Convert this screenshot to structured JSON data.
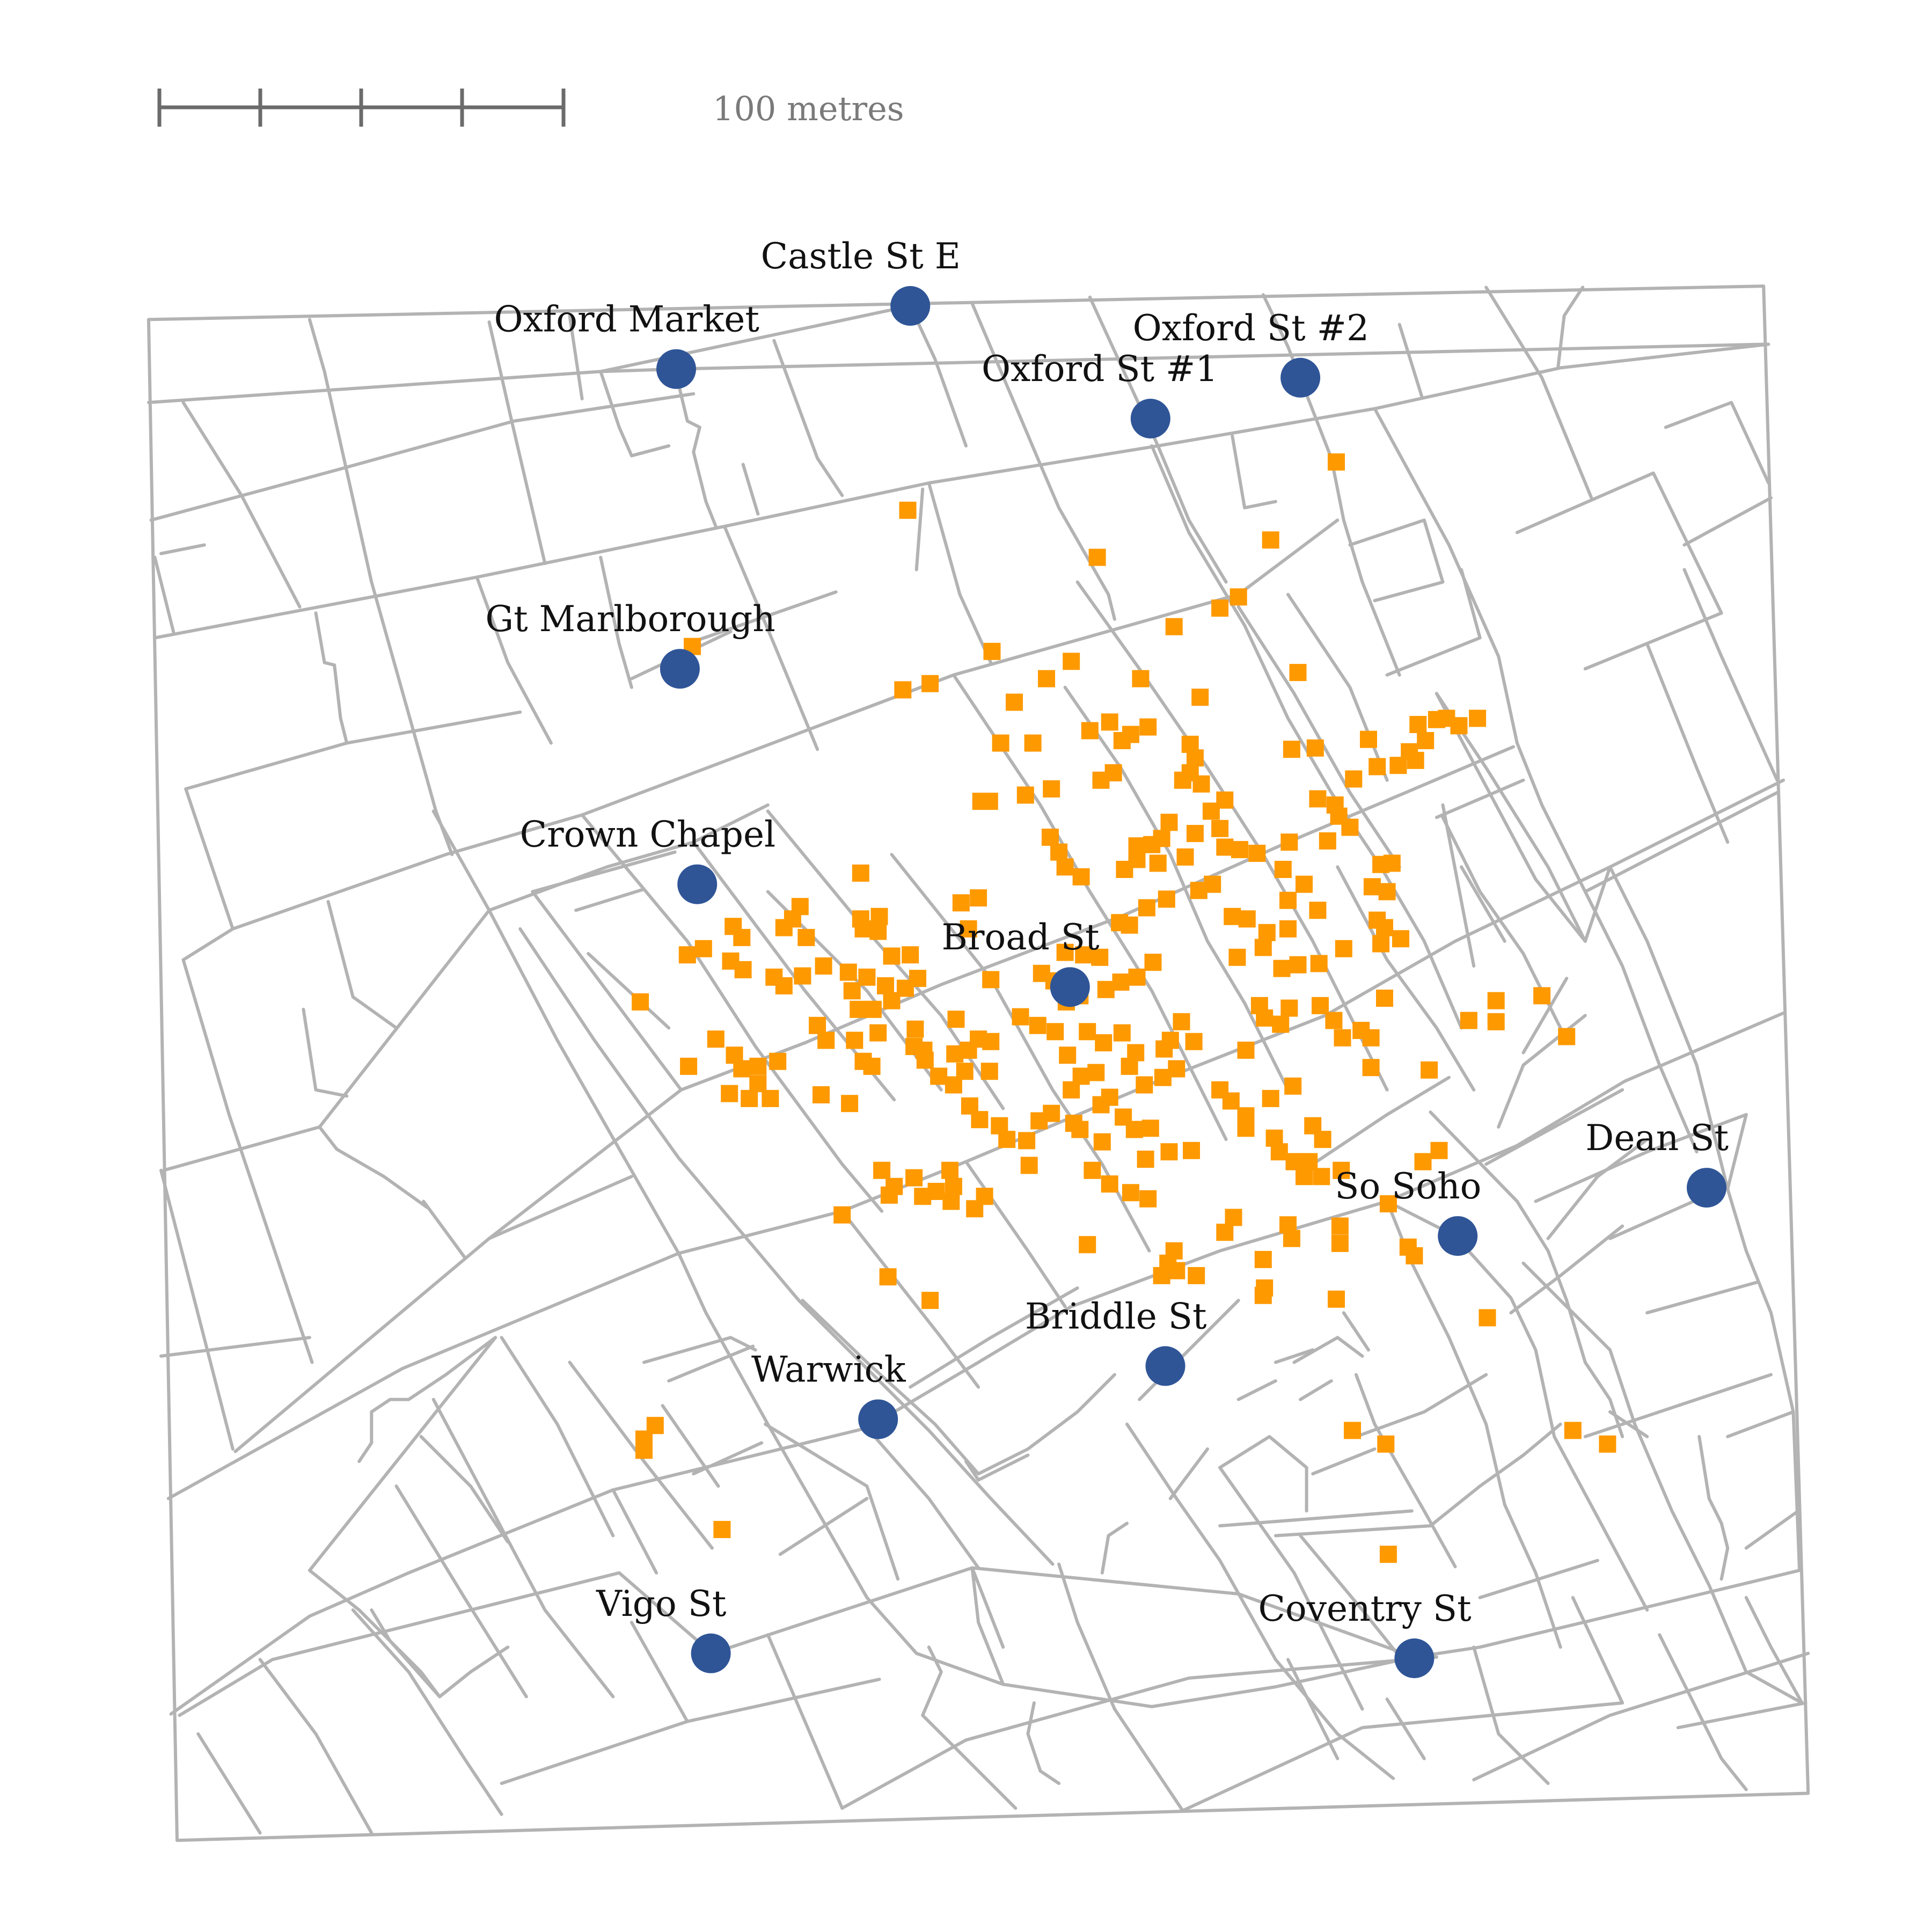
{
  "map": {
    "scale_bar": {
      "label": "100 metres"
    },
    "colors": {
      "streets": "#b3b3b3",
      "pumps": "#2f5597",
      "deaths": "#ff9900",
      "scale_bar": "#6b6b6b"
    },
    "pumps": [
      {
        "name": "Castle St E"
      },
      {
        "name": "Oxford Market"
      },
      {
        "name": "Oxford St #2"
      },
      {
        "name": "Oxford St #1"
      },
      {
        "name": "Gt Marlborough"
      },
      {
        "name": "Crown Chapel"
      },
      {
        "name": "Broad St"
      },
      {
        "name": "Dean St"
      },
      {
        "name": "So Soho"
      },
      {
        "name": "Briddle St"
      },
      {
        "name": "Warwick"
      },
      {
        "name": "Vigo St"
      },
      {
        "name": "Coventry St"
      }
    ]
  }
}
